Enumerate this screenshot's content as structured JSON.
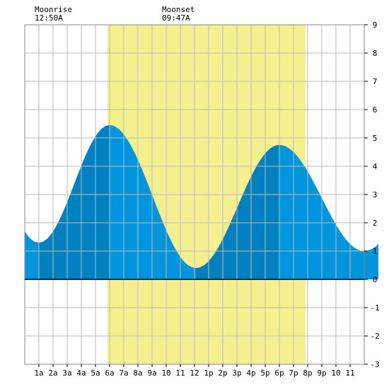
{
  "chart_data": {
    "type": "area",
    "annotations": [
      {
        "label": "Moonrise",
        "time": "12:50A"
      },
      {
        "label": "Moonset",
        "time": "09:47A"
      }
    ],
    "x_ticks": [
      "1a",
      "2a",
      "3a",
      "4a",
      "5a",
      "6a",
      "7a",
      "8a",
      "9a",
      "10",
      "11",
      "12",
      "1p",
      "2p",
      "3p",
      "4p",
      "5p",
      "6p",
      "7p",
      "8p",
      "9p",
      "10",
      "11"
    ],
    "y_ticks": [
      "-3",
      "-2",
      "-1",
      "0",
      "1",
      "2",
      "3",
      "4",
      "5",
      "6",
      "7",
      "8",
      "9"
    ],
    "xlim": [
      0,
      23
    ],
    "ylim": [
      -3,
      9
    ],
    "daylight": [
      4.85,
      18.85
    ],
    "extrema": [
      {
        "t": 0.0,
        "h": 1.3
      },
      {
        "t": 5.0,
        "h": 5.45
      },
      {
        "t": 11.1,
        "h": 0.4
      },
      {
        "t": 17.0,
        "h": 4.75
      },
      {
        "t": 23.0,
        "h": 1.0
      }
    ],
    "dark_bands": [
      [
        0,
        5.0
      ],
      [
        11.1,
        17.0
      ]
    ],
    "grid": true,
    "colors": {
      "daylight": "#f5f08f",
      "tide_light": "#0095dd",
      "tide_dark": "#0080bf",
      "grid": "#bbbbbb",
      "axis": "#000000"
    }
  }
}
